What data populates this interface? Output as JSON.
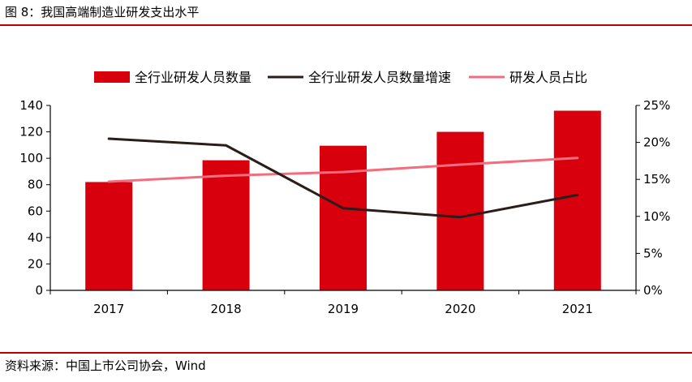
{
  "figure": {
    "title": "图 8：我国高端制造业研发支出水平",
    "source": "资料来源：中国上市公司协会，Wind"
  },
  "colors": {
    "rule": "#c00000",
    "bar": "#d9000d",
    "growth_line": "#2b1d1a",
    "ratio_line": "#f26d7d",
    "axis": "#000000"
  },
  "chart_data": {
    "type": "bar",
    "categories": [
      "2017",
      "2018",
      "2019",
      "2020",
      "2021"
    ],
    "series": [
      {
        "name": "全行业研发人员数量",
        "type": "bar",
        "axis": "left",
        "values": [
          82,
          98.5,
          109.5,
          120,
          136
        ]
      },
      {
        "name": "全行业研发人员数量增速",
        "type": "line",
        "axis": "right",
        "values": [
          0.205,
          0.196,
          0.111,
          0.099,
          0.129
        ]
      },
      {
        "name": "研发人员占比",
        "type": "line",
        "axis": "right",
        "values": [
          0.147,
          0.155,
          0.16,
          0.17,
          0.179
        ]
      }
    ],
    "y_left": {
      "min": 0,
      "max": 140,
      "ticks": [
        "0",
        "20",
        "40",
        "60",
        "80",
        "100",
        "120",
        "140"
      ]
    },
    "y_right": {
      "min": 0,
      "max": 0.25,
      "ticks": [
        "0%",
        "5%",
        "10%",
        "15%",
        "20%",
        "25%"
      ]
    },
    "legend": "top-center",
    "grid": false
  }
}
